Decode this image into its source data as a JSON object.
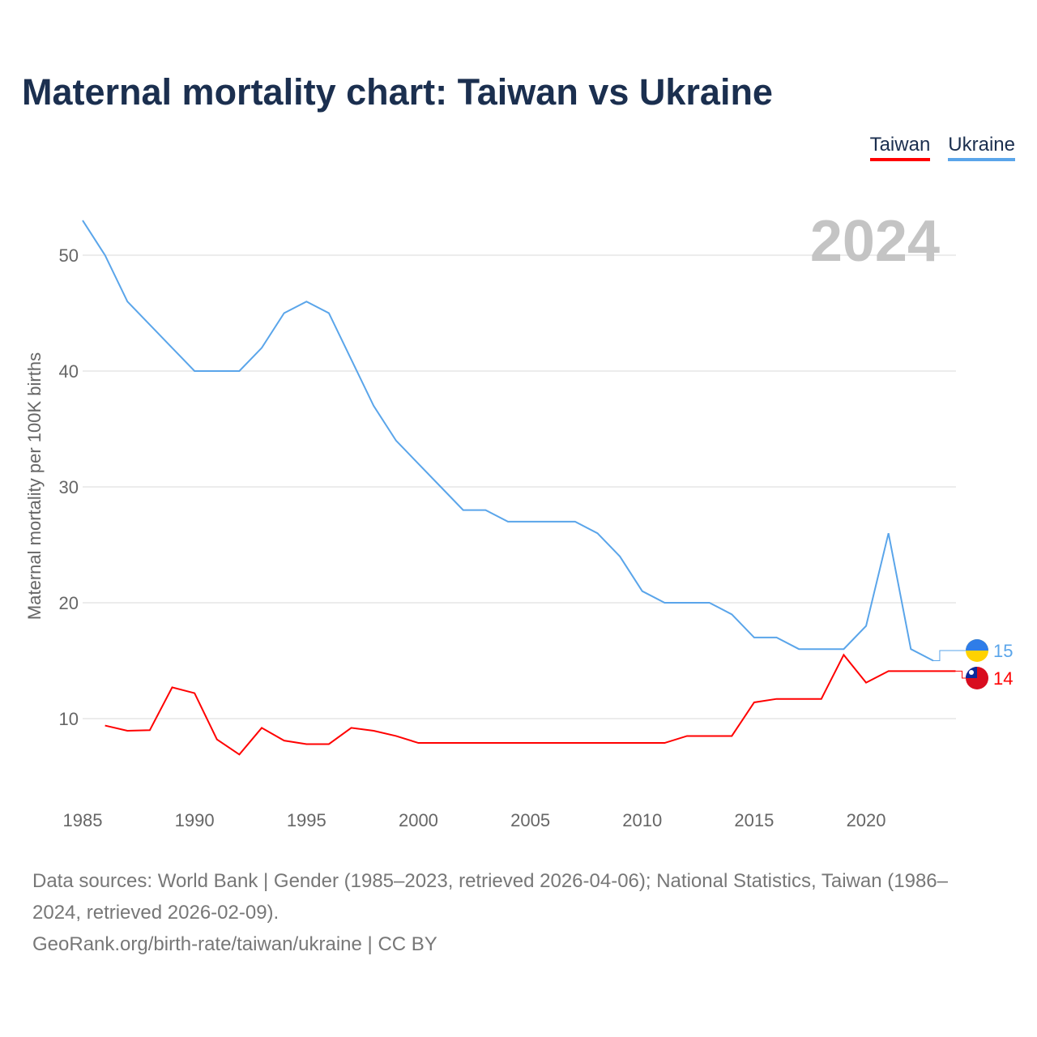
{
  "title": "Maternal mortality chart: Taiwan vs Ukraine",
  "chart_data": {
    "type": "line",
    "title": "Maternal mortality chart: Taiwan vs Ukraine",
    "ylabel": "Maternal mortality per 100K births",
    "xlabel": "",
    "xlim": [
      1985,
      2024
    ],
    "ylim": [
      3.5,
      55
    ],
    "xticks": [
      1985,
      1990,
      1995,
      2000,
      2005,
      2010,
      2015,
      2020
    ],
    "yticks": [
      10,
      20,
      30,
      40,
      50
    ],
    "grid": true,
    "legend_position": "top-right",
    "year_watermark": "2024",
    "series": [
      {
        "name": "Taiwan",
        "color": "#ff0000",
        "end_label": "14",
        "x": [
          1986,
          1987,
          1988,
          1989,
          1990,
          1991,
          1992,
          1993,
          1994,
          1995,
          1996,
          1997,
          1998,
          1999,
          2000,
          2001,
          2002,
          2003,
          2004,
          2005,
          2006,
          2007,
          2008,
          2009,
          2010,
          2011,
          2012,
          2013,
          2014,
          2015,
          2016,
          2017,
          2018,
          2019,
          2020,
          2021,
          2022,
          2023,
          2024
        ],
        "values": [
          9.4,
          8.95,
          9.0,
          12.7,
          12.2,
          8.2,
          6.9,
          9.2,
          8.1,
          7.8,
          7.8,
          9.2,
          8.95,
          8.5,
          7.9,
          7.9,
          7.9,
          7.9,
          7.9,
          7.9,
          7.9,
          7.9,
          7.9,
          7.9,
          7.9,
          7.9,
          8.5,
          8.5,
          8.5,
          11.4,
          11.7,
          11.7,
          11.7,
          15.5,
          13.1,
          14.1,
          14.1,
          14.1,
          14.1
        ]
      },
      {
        "name": "Ukraine",
        "color": "#5aa5ea",
        "end_label": "15",
        "x": [
          1985,
          1986,
          1987,
          1988,
          1989,
          1990,
          1991,
          1992,
          1993,
          1994,
          1995,
          1996,
          1997,
          1998,
          1999,
          2000,
          2001,
          2002,
          2003,
          2004,
          2005,
          2006,
          2007,
          2008,
          2009,
          2010,
          2011,
          2012,
          2013,
          2014,
          2015,
          2016,
          2017,
          2018,
          2019,
          2020,
          2021,
          2022,
          2023
        ],
        "values": [
          53,
          50,
          46,
          44,
          42,
          40,
          40,
          40,
          42,
          45,
          46,
          45,
          41,
          37,
          34,
          32,
          30,
          28,
          28,
          27,
          27,
          27,
          27,
          26,
          24,
          21,
          20,
          20,
          20,
          19,
          17,
          17,
          16,
          16,
          16,
          18,
          26,
          16,
          15
        ]
      }
    ]
  },
  "source_lines": [
    "Data sources: World Bank | Gender (1985–2023, retrieved 2026-04-06); National Statistics, Taiwan (1986–2024, retrieved 2026-02-09).",
    "GeoRank.org/birth-rate/taiwan/ukraine | CC BY"
  ]
}
